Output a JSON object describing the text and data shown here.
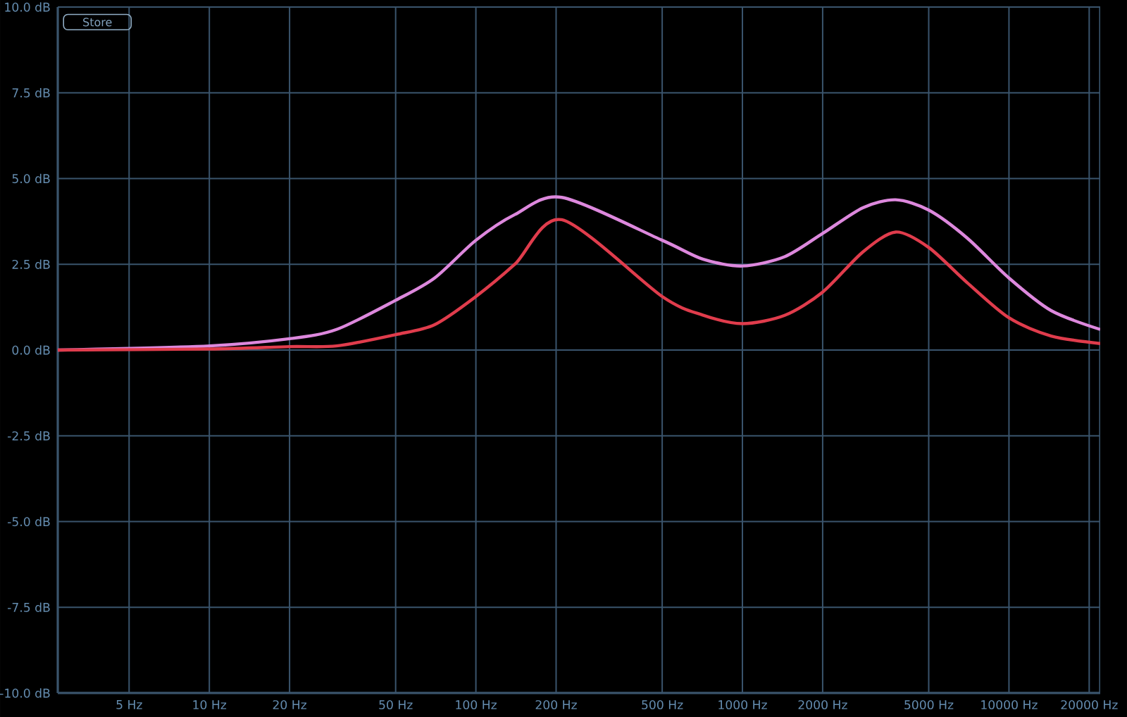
{
  "chart_data": {
    "type": "line",
    "x": [
      2.7,
      10,
      20,
      30,
      50,
      70,
      100,
      140,
      210,
      500,
      710,
      1000,
      1440,
      2000,
      2830,
      3760,
      5000,
      6960,
      10000,
      14400,
      22000
    ],
    "series": [
      {
        "color": "#dd88dd",
        "values": [
          0,
          0.12,
          0.33,
          0.6,
          1.45,
          2.1,
          3.2,
          3.95,
          4.45,
          3.2,
          2.65,
          2.45,
          2.72,
          3.4,
          4.15,
          4.38,
          4.08,
          3.27,
          2.1,
          1.15,
          0.6
        ]
      },
      {
        "color": "#e03c4c",
        "values": [
          0,
          0.03,
          0.1,
          0.12,
          0.45,
          0.74,
          1.56,
          2.5,
          3.8,
          1.56,
          1.02,
          0.77,
          1.01,
          1.69,
          2.86,
          3.44,
          2.99,
          1.97,
          0.94,
          0.41,
          0.19
        ]
      }
    ],
    "log": "x",
    "grid": true,
    "legend": false,
    "marker": "none",
    "line_style": "solid",
    "xlim": [
      2.7,
      22000
    ],
    "xticks": [
      {
        "value": 5,
        "label": "5 Hz"
      },
      {
        "value": 10,
        "label": "10 Hz"
      },
      {
        "value": 20,
        "label": "20 Hz"
      },
      {
        "value": 50,
        "label": "50 Hz"
      },
      {
        "value": 100,
        "label": "100 Hz"
      },
      {
        "value": 200,
        "label": "200 Hz"
      },
      {
        "value": 500,
        "label": "500 Hz"
      },
      {
        "value": 1000,
        "label": "1000 Hz"
      },
      {
        "value": 2000,
        "label": "2000 Hz"
      },
      {
        "value": 5000,
        "label": "5000 Hz"
      },
      {
        "value": 10000,
        "label": "10000 Hz"
      },
      {
        "value": 20000,
        "label": "20000 Hz"
      }
    ],
    "ylim": [
      -10,
      10
    ],
    "yticks": [
      {
        "value": -10,
        "label": "-10.0 dB"
      },
      {
        "value": -7.5,
        "label": "-7.5 dB"
      },
      {
        "value": -5,
        "label": "-5.0 dB"
      },
      {
        "value": -2.5,
        "label": "-2.5 dB"
      },
      {
        "value": 0,
        "label": "0.0 dB"
      },
      {
        "value": 2.5,
        "label": "2.5 dB"
      },
      {
        "value": 5,
        "label": "5.0 dB"
      },
      {
        "value": 7.5,
        "label": "7.5 dB"
      },
      {
        "value": 10,
        "label": "10.0 dB"
      }
    ],
    "annotations": [
      "Store"
    ]
  }
}
